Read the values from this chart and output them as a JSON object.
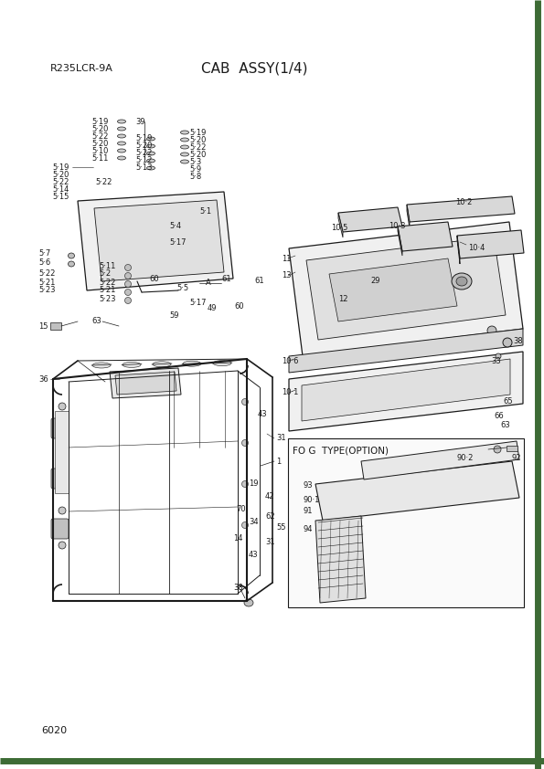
{
  "title": "CAB  ASSY(1/4)",
  "model": "R235LCR-9A",
  "page_number": "6020",
  "bg_color": "#ffffff",
  "border_color": "#3d6b35",
  "text_color": "#1a1a1a",
  "fig_width": 5.95,
  "fig_height": 8.42,
  "dpi": 100
}
